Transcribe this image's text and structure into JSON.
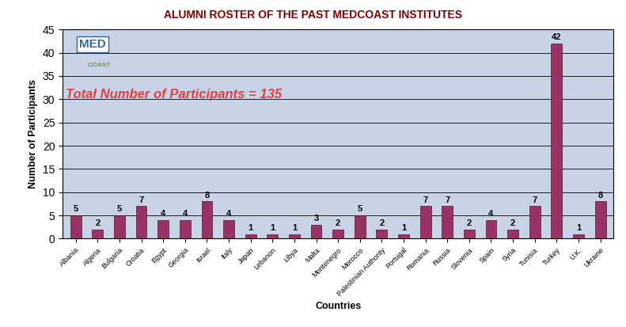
{
  "chart_data": {
    "type": "bar",
    "title": "ALUMNI ROSTER OF THE PAST MEDCOAST INSTITUTES",
    "x_label": "Countries",
    "y_label": "Number of Participants",
    "annotations": [
      "Total Number of Participants = 135",
      "MED",
      "COAST"
    ],
    "categories": [
      "Albania",
      "Algeria",
      "Bulgaria",
      "Croatia",
      "Egypt",
      "Georgia",
      "Israel",
      "Italy",
      "Japan",
      "Lebanon",
      "Libya",
      "Malta",
      "Montenegro",
      "Morocco",
      "Palestinian Authority",
      "Portugal",
      "Romania",
      "Russia",
      "Slovenia",
      "Spain",
      "Syria",
      "Tunisia",
      "Turkey",
      "U.K.",
      "Ukraine"
    ],
    "values": [
      5,
      2,
      5,
      7,
      4,
      4,
      8,
      4,
      1,
      1,
      1,
      3,
      2,
      5,
      2,
      1,
      7,
      7,
      2,
      4,
      2,
      7,
      42,
      1,
      8
    ],
    "color": "#993366",
    "ylim": [
      0,
      45
    ],
    "yticks": [
      0,
      5,
      10,
      15,
      20,
      25,
      30,
      35,
      40,
      45
    ],
    "grid": true,
    "data_labels": true
  }
}
